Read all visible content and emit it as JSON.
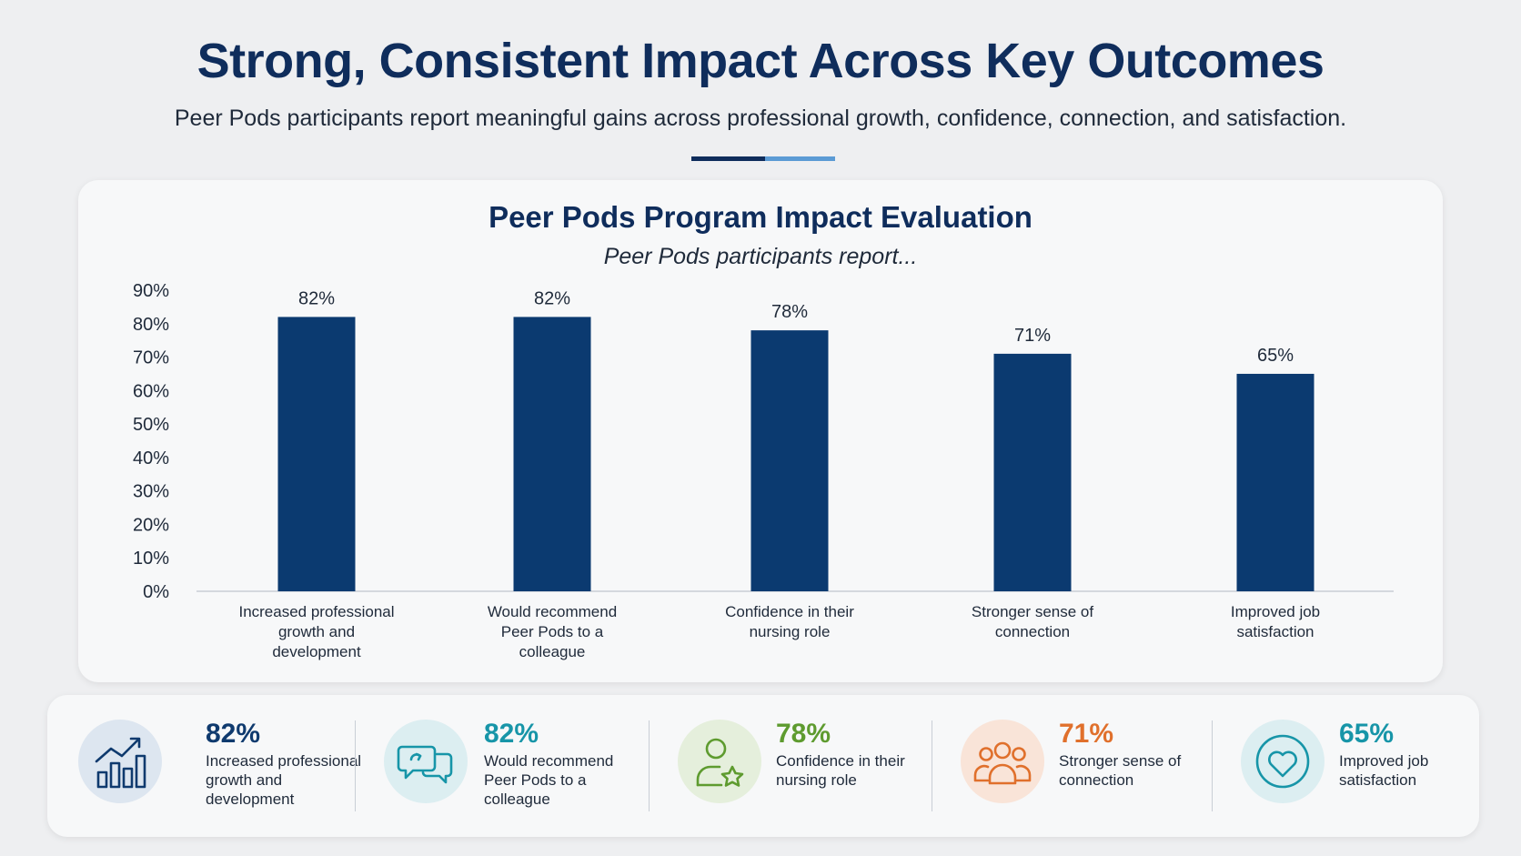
{
  "header": {
    "title": "Strong, Consistent Impact Across Key Outcomes",
    "subtitle": "Peer Pods participants report meaningful gains across professional growth, confidence, connection, and satisfaction."
  },
  "chart_data": {
    "type": "bar",
    "title": "Peer Pods Program Impact Evaluation",
    "subtitle": "Peer Pods participants report...",
    "categories": [
      "Increased professional growth and development",
      "Would recommend Peer Pods to a colleague",
      "Confidence in their nursing role",
      "Stronger sense of connection",
      "Improved job satisfaction"
    ],
    "category_lines": [
      [
        "Increased professional",
        "growth and",
        "development"
      ],
      [
        "Would recommend",
        "Peer Pods to a",
        "colleague"
      ],
      [
        "Confidence in their",
        "nursing role"
      ],
      [
        "Stronger sense of",
        "connection"
      ],
      [
        "Improved job",
        "satisfaction"
      ]
    ],
    "values": [
      82,
      82,
      78,
      71,
      65
    ],
    "data_labels": [
      "82%",
      "82%",
      "78%",
      "71%",
      "65%"
    ],
    "ylim": [
      0,
      90
    ],
    "yticks": [
      "0%",
      "10%",
      "20%",
      "30%",
      "40%",
      "50%",
      "60%",
      "70%",
      "80%",
      "90%"
    ],
    "xlabel": "",
    "ylabel": "",
    "grid": false,
    "bar_color": "#0b3a70"
  },
  "stats": [
    {
      "value": "82%",
      "label": "Increased professional\ngrowth and\ndevelopment",
      "icon": "growth-chart-icon",
      "color": "#0f3a6e",
      "bg": "#dde6f0"
    },
    {
      "value": "82%",
      "label": "Would recommend\nPeer Pods to a\ncolleague",
      "icon": "chat-bubbles-icon",
      "color": "#1795a8",
      "bg": "#dceef1"
    },
    {
      "value": "78%",
      "label": "Confidence in their\nnursing role",
      "icon": "person-star-icon",
      "color": "#5e9b2f",
      "bg": "#e5efdc"
    },
    {
      "value": "71%",
      "label": "Stronger sense of\nconnection",
      "icon": "group-icon",
      "color": "#e0702c",
      "bg": "#f9e4d8"
    },
    {
      "value": "65%",
      "label": "Improved job\nsatisfaction",
      "icon": "heart-icon",
      "color": "#1795a8",
      "bg": "#dceef1"
    }
  ]
}
